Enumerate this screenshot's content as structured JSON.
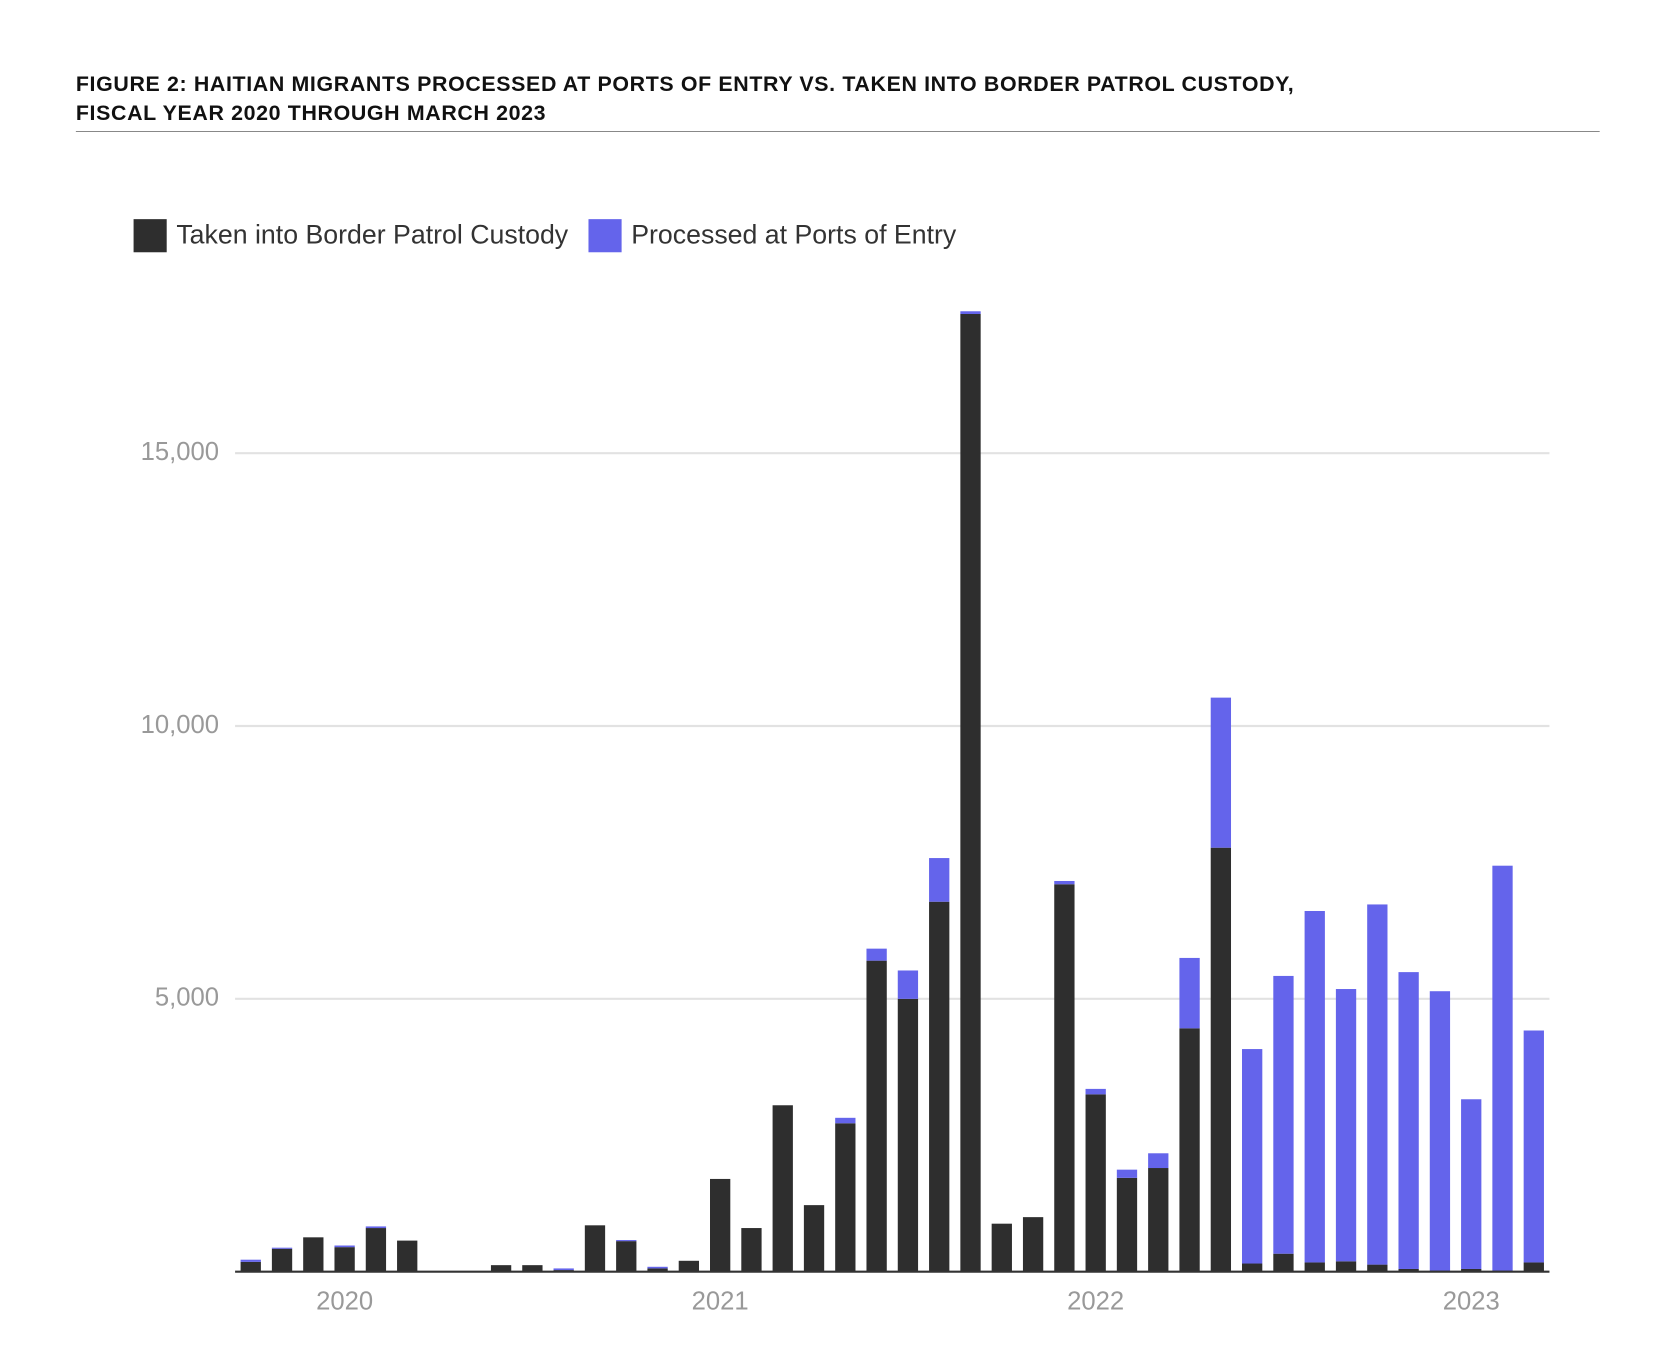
{
  "chart_data": {
    "type": "stacked_bar",
    "title": [
      "FIGURE 2: HAITIAN MIGRANTS PROCESSED AT PORTS OF ENTRY VS. TAKEN INTO BORDER PATROL CUSTODY,",
      "FISCAL YEAR 2020 THROUGH MARCH 2023"
    ],
    "categories": [
      null,
      null,
      null,
      "2020",
      null,
      null,
      null,
      null,
      null,
      null,
      null,
      null,
      null,
      null,
      null,
      "2021",
      null,
      null,
      null,
      null,
      null,
      null,
      null,
      null,
      null,
      null,
      null,
      "2022",
      null,
      null,
      null,
      null,
      null,
      null,
      null,
      null,
      null,
      null,
      null,
      "2023",
      null,
      null
    ],
    "series": [
      {
        "name": "Taken into Border Patrol Custody",
        "color": "#2e2e2e",
        "values": [
          180,
          420,
          630,
          450,
          800,
          570,
          0,
          0,
          120,
          120,
          30,
          850,
          560,
          60,
          200,
          1700,
          800,
          3050,
          1220,
          2720,
          5700,
          5000,
          6780,
          17550,
          880,
          1000,
          7100,
          3250,
          1720,
          1900,
          4460,
          7770,
          150,
          330,
          170,
          190,
          130,
          50,
          20,
          50,
          20,
          170
        ]
      },
      {
        "name": "Processed at Ports of Entry",
        "color": "#6464eb",
        "values": [
          40,
          20,
          0,
          30,
          30,
          0,
          0,
          0,
          0,
          0,
          30,
          0,
          20,
          30,
          0,
          0,
          0,
          0,
          0,
          100,
          220,
          520,
          800,
          50,
          0,
          0,
          60,
          100,
          150,
          270,
          1290,
          2750,
          3930,
          5090,
          6440,
          4990,
          6600,
          5440,
          5120,
          3110,
          7420,
          4250
        ]
      }
    ],
    "ylim": [
      0,
      17800
    ],
    "yticks": [
      {
        "value": 5000,
        "label": "5,000"
      },
      {
        "value": 10000,
        "label": "10,000"
      },
      {
        "value": 15000,
        "label": "15,000"
      }
    ],
    "grid": true,
    "legend": "top-left"
  }
}
